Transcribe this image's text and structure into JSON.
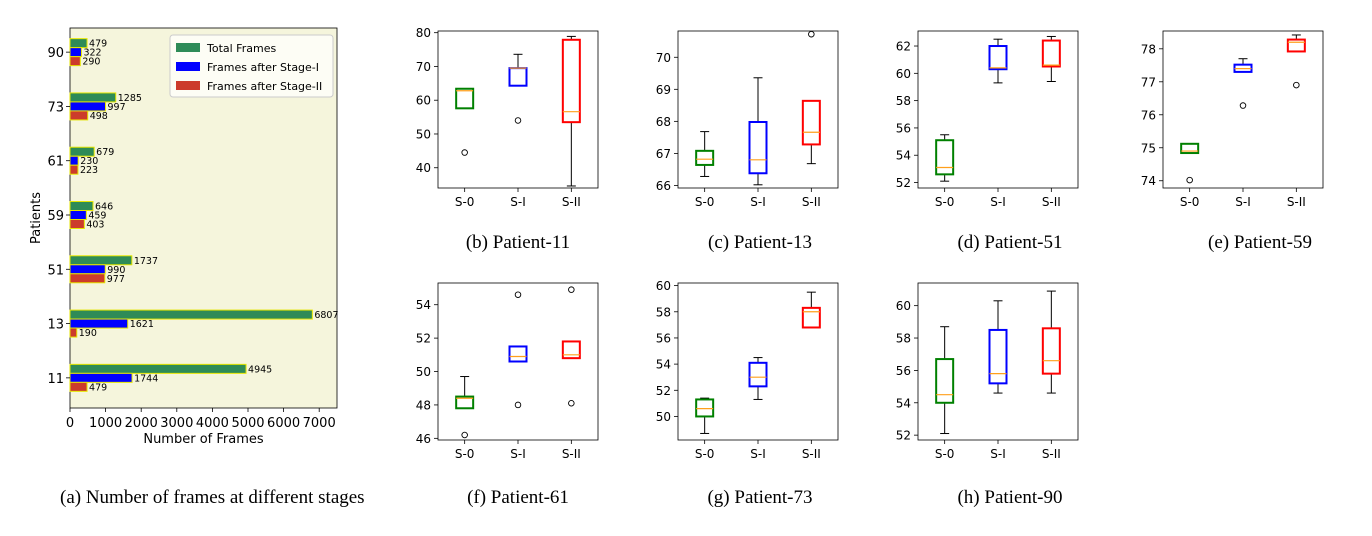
{
  "colors": {
    "bar_bg": "#f5f5dc",
    "total": "#2e8b57",
    "stage1": "#0000ff",
    "stage2": "#cc3b2b",
    "bar_edge": "#e6e600",
    "box_s0": "green",
    "box_s1": "blue",
    "box_s2": "red",
    "median": "#ff9f1c"
  },
  "chart_data": [
    {
      "type": "bar",
      "orientation": "horizontal",
      "caption": "(a) Number of frames at different stages",
      "ylabel": "Patients",
      "xlabel": "Number of Frames",
      "categories": [
        "11",
        "13",
        "51",
        "59",
        "61",
        "73",
        "90"
      ],
      "series": [
        {
          "name": "Total Frames",
          "values": [
            4945,
            6807,
            1737,
            646,
            679,
            1285,
            479
          ]
        },
        {
          "name": "Frames after Stage-I",
          "values": [
            1744,
            1621,
            990,
            459,
            230,
            997,
            322
          ]
        },
        {
          "name": "Frames after Stage-II",
          "values": [
            479,
            190,
            977,
            403,
            223,
            498,
            290
          ]
        }
      ],
      "xlim": [
        0,
        7500
      ],
      "xticks": [
        "0",
        "1000",
        "2000",
        "3000",
        "4000",
        "5000",
        "6000",
        "7000"
      ],
      "legend": "top-right"
    },
    {
      "type": "box",
      "caption": "(b) Patient-11",
      "categories": [
        "S-0",
        "S-I",
        "S-II"
      ],
      "ylim": [
        34,
        80.5
      ],
      "yticks": [
        40,
        50,
        60,
        70,
        80
      ],
      "boxes": [
        {
          "whislo": 57.6,
          "q1": 57.6,
          "med": 62.8,
          "q3": 63.4,
          "whishi": 63.4,
          "fliers": [
            44.5
          ]
        },
        {
          "whislo": 64.3,
          "q1": 64.3,
          "med": 69.5,
          "q3": 69.5,
          "whishi": 73.6,
          "fliers": [
            54
          ]
        },
        {
          "whislo": 34.6,
          "q1": 53.5,
          "med": 56.6,
          "q3": 77.9,
          "whishi": 78.9,
          "fliers": []
        }
      ]
    },
    {
      "type": "box",
      "caption": "(c) Patient-13",
      "categories": [
        "S-0",
        "S-I",
        "S-II"
      ],
      "ylim": [
        65.92,
        70.82
      ],
      "yticks": [
        66,
        67,
        68,
        69,
        70
      ],
      "boxes": [
        {
          "whislo": 66.28,
          "q1": 66.64,
          "med": 66.82,
          "q3": 67.08,
          "whishi": 67.68,
          "fliers": []
        },
        {
          "whislo": 66.02,
          "q1": 66.38,
          "med": 66.8,
          "q3": 67.98,
          "whishi": 69.36,
          "fliers": []
        },
        {
          "whislo": 66.68,
          "q1": 67.28,
          "med": 67.66,
          "q3": 68.64,
          "whishi": 68.64,
          "fliers": [
            70.72
          ]
        }
      ]
    },
    {
      "type": "box",
      "caption": "(d) Patient-51",
      "categories": [
        "S-0",
        "S-I",
        "S-II"
      ],
      "ylim": [
        51.6,
        63.1
      ],
      "yticks": [
        52,
        54,
        56,
        58,
        60,
        62
      ],
      "boxes": [
        {
          "whislo": 52.1,
          "q1": 52.6,
          "med": 53.1,
          "q3": 55.1,
          "whishi": 55.5,
          "fliers": []
        },
        {
          "whislo": 59.3,
          "q1": 60.3,
          "med": 60.4,
          "q3": 62.0,
          "whishi": 62.5,
          "fliers": []
        },
        {
          "whislo": 59.4,
          "q1": 60.5,
          "med": 60.6,
          "q3": 62.4,
          "whishi": 62.7,
          "fliers": []
        }
      ]
    },
    {
      "type": "box",
      "caption": "(e) Patient-59",
      "categories": [
        "S-0",
        "S-I",
        "S-II"
      ],
      "ylim": [
        73.78,
        78.54
      ],
      "yticks": [
        74,
        75,
        76,
        77,
        78
      ],
      "boxes": [
        {
          "whislo": 74.84,
          "q1": 74.84,
          "med": 74.9,
          "q3": 75.12,
          "whishi": 75.12,
          "fliers": [
            74.02
          ]
        },
        {
          "whislo": 77.3,
          "q1": 77.3,
          "med": 77.4,
          "q3": 77.52,
          "whishi": 77.7,
          "fliers": [
            76.28
          ]
        },
        {
          "whislo": 77.92,
          "q1": 77.92,
          "med": 78.2,
          "q3": 78.28,
          "whishi": 78.42,
          "fliers": [
            76.9
          ]
        }
      ]
    },
    {
      "type": "box",
      "caption": "(f) Patient-61",
      "categories": [
        "S-0",
        "S-I",
        "S-II"
      ],
      "ylim": [
        45.9,
        55.3
      ],
      "yticks": [
        46,
        48,
        50,
        52,
        54
      ],
      "boxes": [
        {
          "whislo": 47.8,
          "q1": 47.8,
          "med": 48.4,
          "q3": 48.5,
          "whishi": 49.7,
          "fliers": [
            46.2
          ]
        },
        {
          "whislo": 50.6,
          "q1": 50.6,
          "med": 50.9,
          "q3": 51.5,
          "whishi": 51.5,
          "fliers": [
            48.0,
            54.6
          ]
        },
        {
          "whislo": 50.8,
          "q1": 50.8,
          "med": 51.0,
          "q3": 51.8,
          "whishi": 51.8,
          "fliers": [
            48.1,
            54.9
          ]
        }
      ]
    },
    {
      "type": "box",
      "caption": "(g) Patient-73",
      "categories": [
        "S-0",
        "S-I",
        "S-II"
      ],
      "ylim": [
        48.2,
        60.2
      ],
      "yticks": [
        50,
        52,
        54,
        56,
        58,
        60
      ],
      "boxes": [
        {
          "whislo": 48.7,
          "q1": 50.0,
          "med": 50.6,
          "q3": 51.3,
          "whishi": 51.4,
          "fliers": []
        },
        {
          "whislo": 51.3,
          "q1": 52.3,
          "med": 53.0,
          "q3": 54.1,
          "whishi": 54.5,
          "fliers": []
        },
        {
          "whislo": 56.8,
          "q1": 56.8,
          "med": 58.0,
          "q3": 58.3,
          "whishi": 59.5,
          "fliers": []
        }
      ]
    },
    {
      "type": "box",
      "caption": "(h) Patient-90",
      "categories": [
        "S-0",
        "S-I",
        "S-II"
      ],
      "ylim": [
        51.7,
        61.4
      ],
      "yticks": [
        52,
        54,
        56,
        58,
        60
      ],
      "boxes": [
        {
          "whislo": 52.1,
          "q1": 54.0,
          "med": 54.5,
          "q3": 56.7,
          "whishi": 58.7,
          "fliers": []
        },
        {
          "whislo": 54.6,
          "q1": 55.2,
          "med": 55.8,
          "q3": 58.5,
          "whishi": 60.3,
          "fliers": []
        },
        {
          "whislo": 54.6,
          "q1": 55.8,
          "med": 56.6,
          "q3": 58.6,
          "whishi": 60.9,
          "fliers": []
        }
      ]
    }
  ]
}
